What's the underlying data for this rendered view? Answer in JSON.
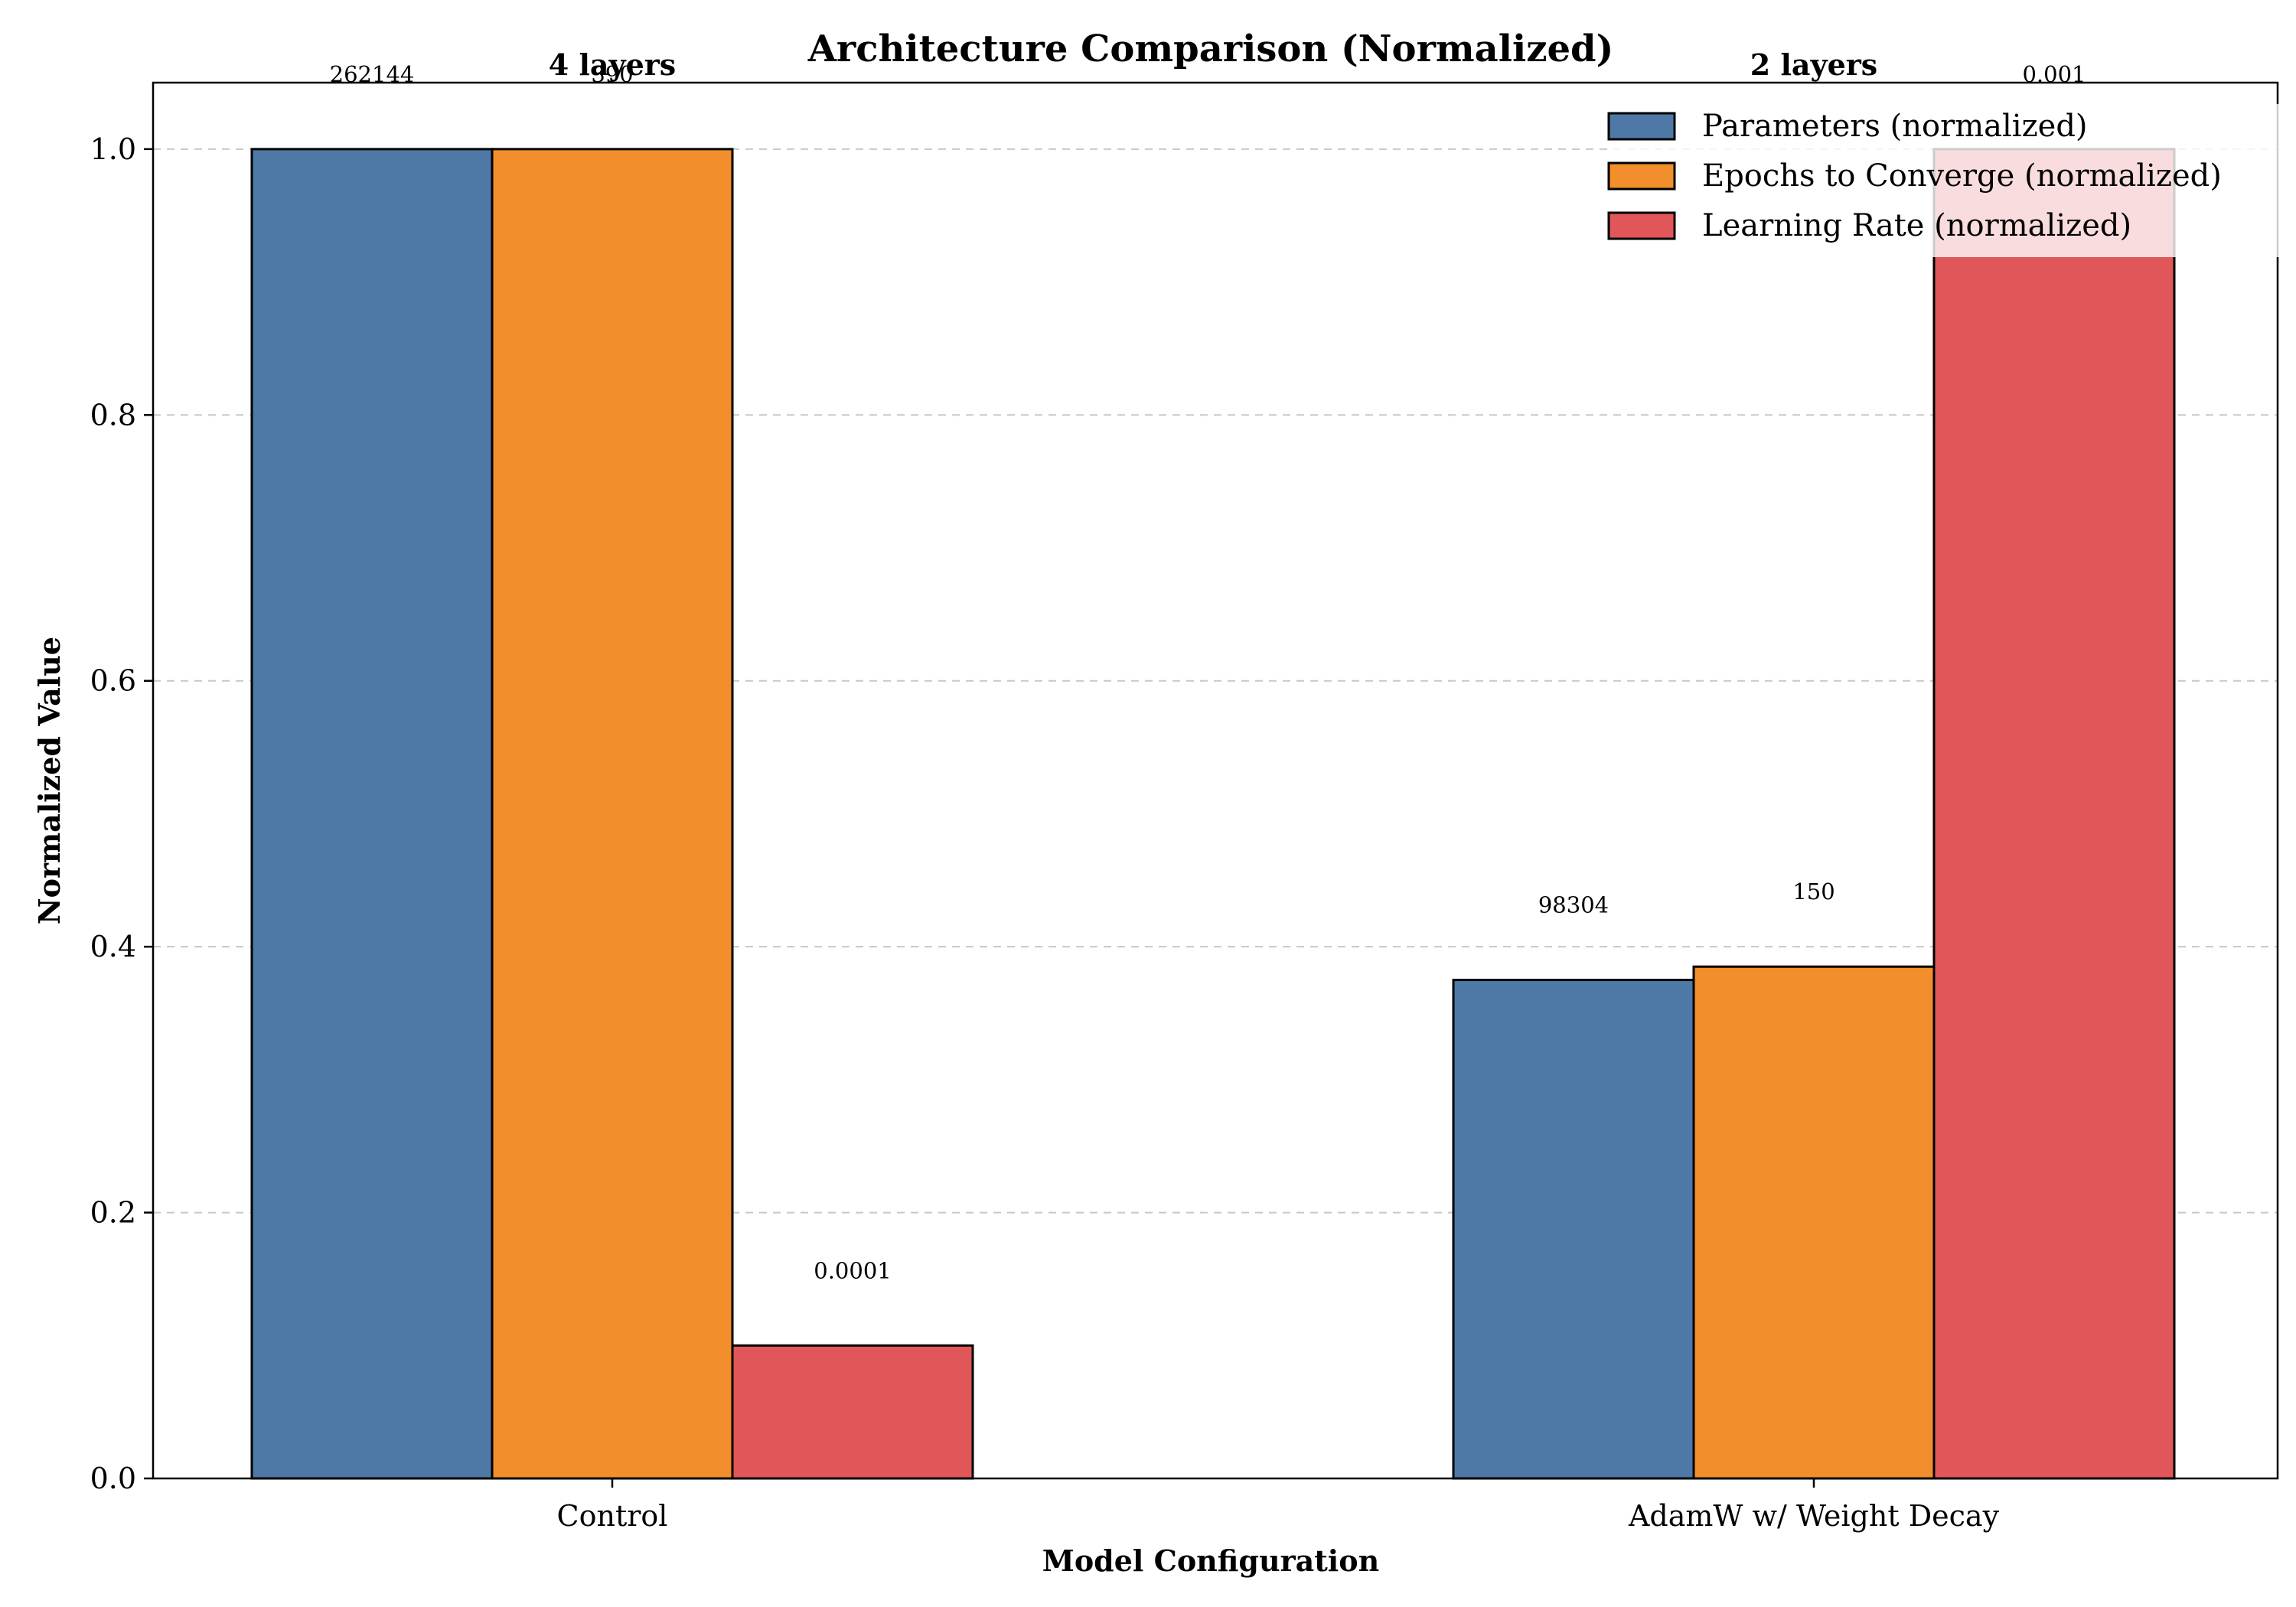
{
  "chart_data": {
    "type": "bar",
    "title": "Architecture Comparison (Normalized)",
    "xlabel": "Model Configuration",
    "ylabel": "Normalized Value",
    "categories": [
      "Control",
      "AdamW w/ Weight Decay"
    ],
    "group_labels": [
      "4 layers",
      "2 layers"
    ],
    "ylim": [
      0,
      1.05
    ],
    "yticks": [
      0.0,
      0.2,
      0.4,
      0.6,
      0.8,
      1.0
    ],
    "ytick_labels": [
      "0.0",
      "0.2",
      "0.4",
      "0.6",
      "0.8",
      "1.0"
    ],
    "grid": "horizontal-dashed",
    "legend_position": "top-right",
    "series": [
      {
        "name": "Parameters (normalized)",
        "color": "#4e79a7",
        "values": [
          1.0,
          0.375
        ],
        "labels": [
          "262144",
          "98304"
        ]
      },
      {
        "name": "Epochs to Converge (normalized)",
        "color": "#f28e2b",
        "values": [
          1.0,
          0.385
        ],
        "labels": [
          "390",
          "150"
        ]
      },
      {
        "name": "Learning Rate (normalized)",
        "color": "#e15759",
        "values": [
          0.1,
          1.0
        ],
        "labels": [
          "0.0001",
          "0.001"
        ]
      }
    ]
  }
}
